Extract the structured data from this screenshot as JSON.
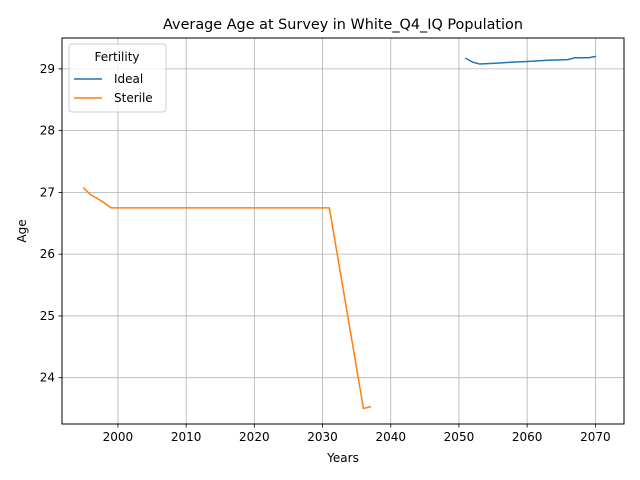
{
  "chart_data": {
    "type": "line",
    "title": "Average Age at Survey in White_Q4_IQ Population",
    "xlabel": "Years",
    "ylabel": "Age",
    "xlim": [
      1991.8,
      2074.2
    ],
    "ylim": [
      23.25,
      29.5
    ],
    "xticks": [
      2000,
      2010,
      2020,
      2030,
      2040,
      2050,
      2060,
      2070
    ],
    "yticks": [
      24,
      25,
      26,
      27,
      28,
      29
    ],
    "grid": true,
    "legend": {
      "title": "Fertility",
      "position": "top-left"
    },
    "series": [
      {
        "name": "Ideal",
        "color": "#1f77b4",
        "x": [
          2051,
          2052,
          2053,
          2055,
          2058,
          2060,
          2063,
          2066,
          2067,
          2068,
          2069,
          2070
        ],
        "y": [
          29.17,
          29.11,
          29.08,
          29.09,
          29.11,
          29.12,
          29.14,
          29.15,
          29.18,
          29.18,
          29.18,
          29.2
        ]
      },
      {
        "name": "Sterile",
        "color": "#ff7f0e",
        "x": [
          1995,
          1996,
          1997,
          1998,
          1999,
          2000,
          2005,
          2010,
          2015,
          2020,
          2025,
          2030,
          2031,
          2032,
          2033,
          2034,
          2035,
          2036,
          2037
        ],
        "y": [
          27.07,
          26.96,
          26.9,
          26.83,
          26.75,
          26.75,
          26.75,
          26.75,
          26.75,
          26.75,
          26.75,
          26.75,
          26.75,
          26.1,
          25.45,
          24.8,
          24.15,
          23.5,
          23.53
        ]
      }
    ]
  }
}
